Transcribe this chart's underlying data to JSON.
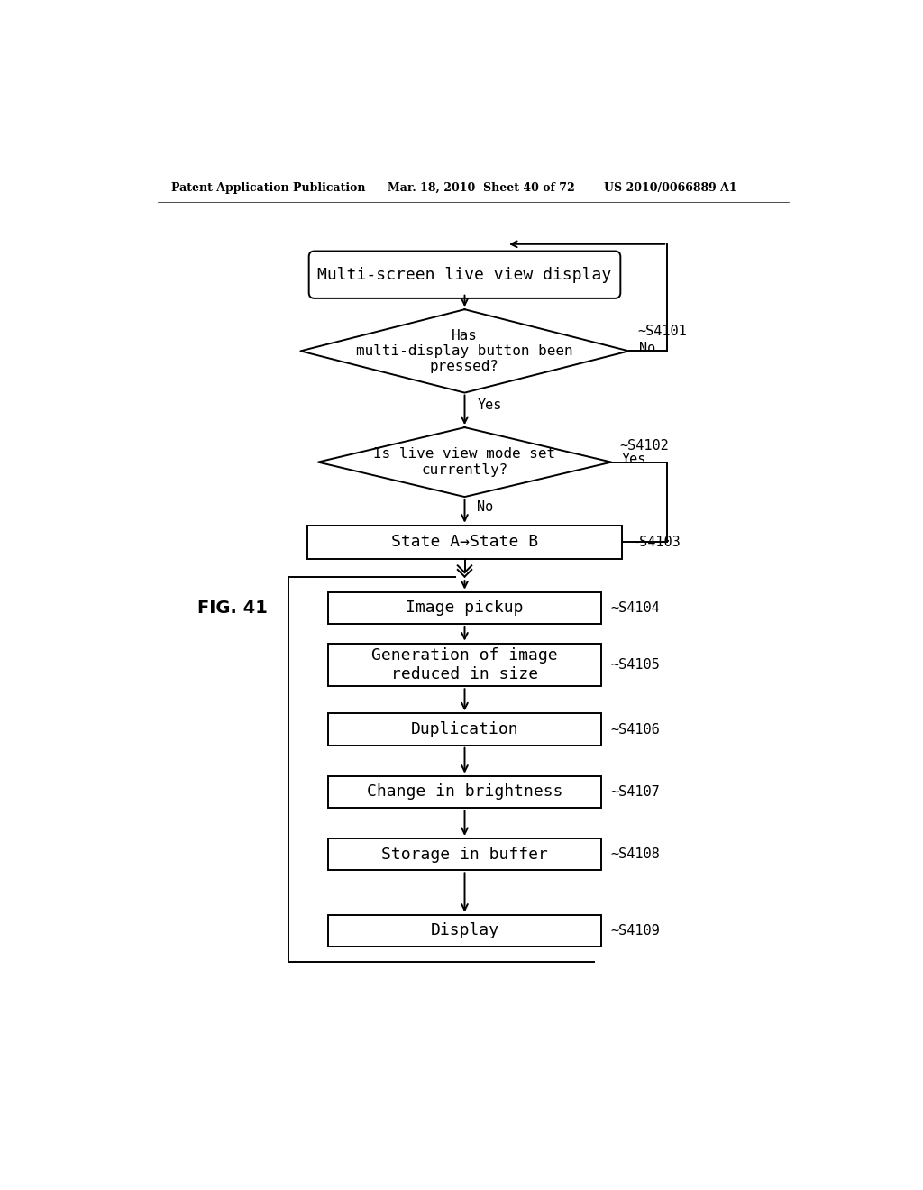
{
  "bg_color": "#ffffff",
  "header_left": "Patent Application Publication",
  "header_mid": "Mar. 18, 2010  Sheet 40 of 72",
  "header_right": "US 2010/0066889 A1",
  "fig_label": "FIG. 41",
  "start_label": "Multi-screen live view display",
  "d1_label": "Has\nmulti-display button been\npressed?",
  "d1_step": "~S4101",
  "d1_no": "No",
  "d2_label": "Is live view mode set\ncurrently?",
  "d2_step": "~S4102",
  "d2_yes": "Yes",
  "d2_no": "No",
  "d1_yes": "Yes",
  "r1_label": "State A→State B",
  "r1_step": "~S4103",
  "r2_label": "Image pickup",
  "r2_step": "~S4104",
  "r3_label": "Generation of image\nreduced in size",
  "r3_step": "~S4105",
  "r4_label": "Duplication",
  "r4_step": "~S4106",
  "r5_label": "Change in brightness",
  "r5_step": "~S4107",
  "r6_label": "Storage in buffer",
  "r6_step": "~S4108",
  "r7_label": "Display",
  "r7_step": "~S4109",
  "lw": 1.4
}
